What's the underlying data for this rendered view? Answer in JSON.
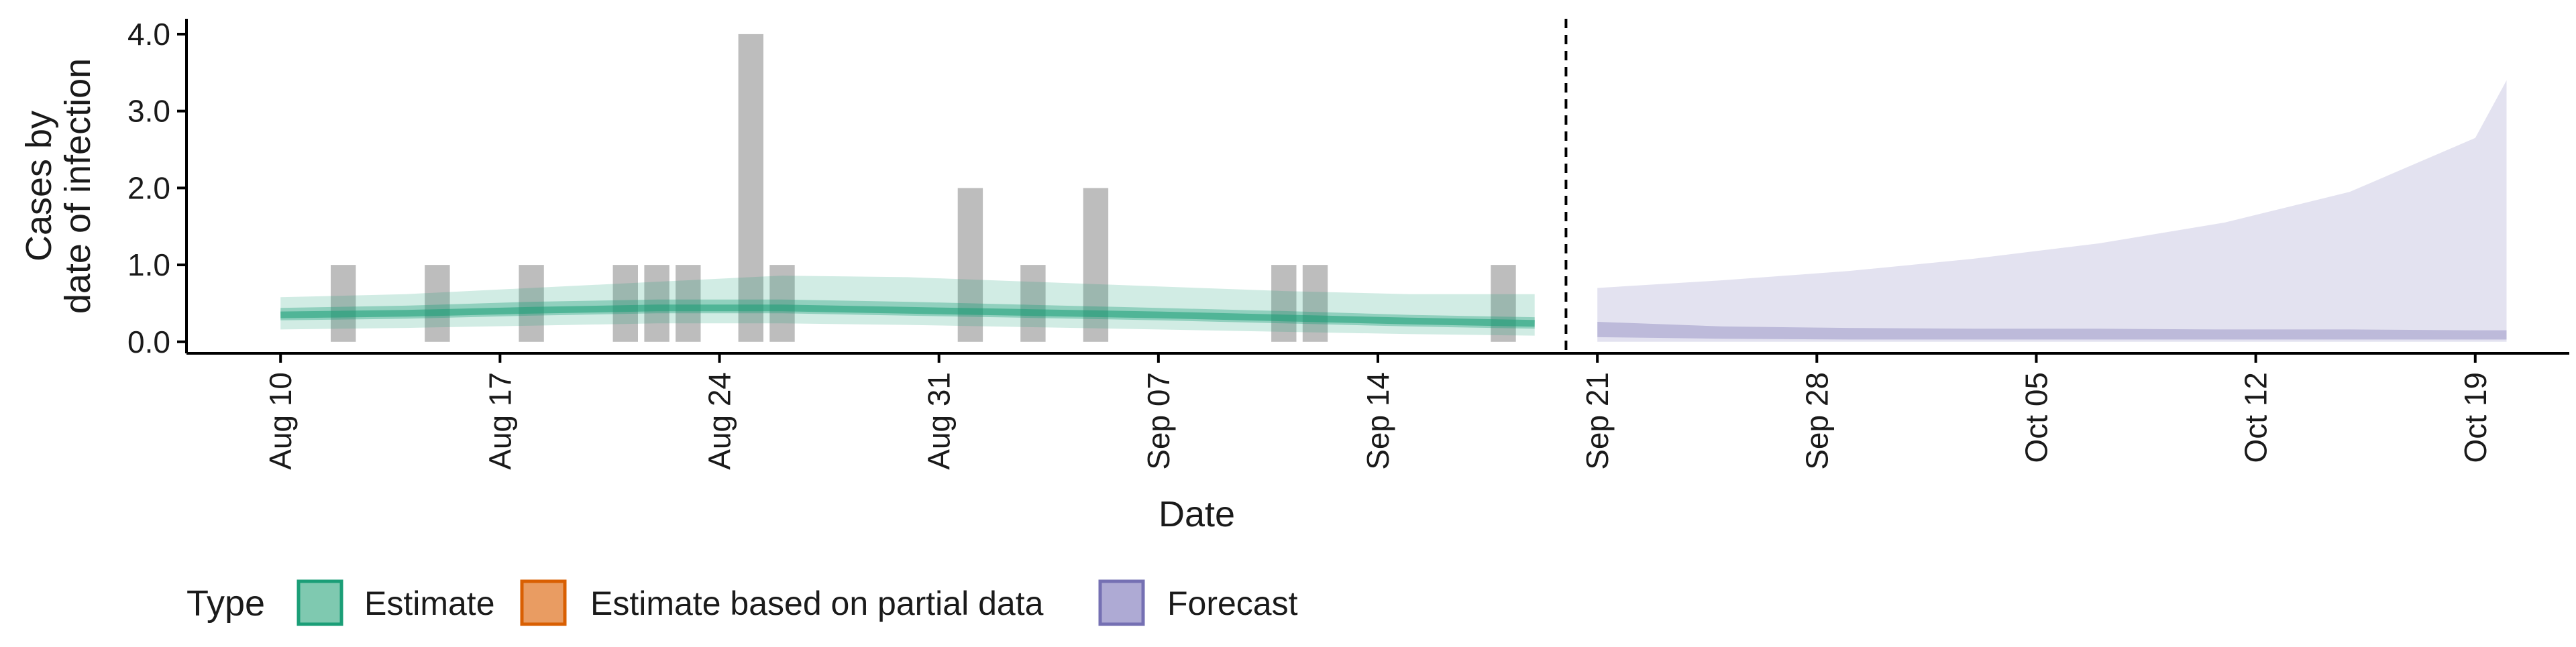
{
  "chart_data": {
    "type": "area",
    "title": "",
    "xlabel": "Date",
    "ylabel": [
      "Cases by",
      "date of infection"
    ],
    "ylim": [
      -0.15,
      4.2
    ],
    "x_range": [
      "2020-08-07",
      "2020-10-22"
    ],
    "y_ticks": [
      "0.0",
      "1.0",
      "2.0",
      "3.0",
      "4.0"
    ],
    "x_ticks": [
      {
        "date": "2020-08-10",
        "label": "Aug 10"
      },
      {
        "date": "2020-08-17",
        "label": "Aug 17"
      },
      {
        "date": "2020-08-24",
        "label": "Aug 24"
      },
      {
        "date": "2020-08-31",
        "label": "Aug 31"
      },
      {
        "date": "2020-09-07",
        "label": "Sep 07"
      },
      {
        "date": "2020-09-14",
        "label": "Sep 14"
      },
      {
        "date": "2020-09-21",
        "label": "Sep 21"
      },
      {
        "date": "2020-09-28",
        "label": "Sep 28"
      },
      {
        "date": "2020-10-05",
        "label": "Oct 05"
      },
      {
        "date": "2020-10-12",
        "label": "Oct 12"
      },
      {
        "date": "2020-10-19",
        "label": "Oct 19"
      }
    ],
    "forecast_start_line": "2020-09-20",
    "observed_cases": [
      {
        "date": "2020-08-12",
        "value": 1
      },
      {
        "date": "2020-08-15",
        "value": 1
      },
      {
        "date": "2020-08-18",
        "value": 1
      },
      {
        "date": "2020-08-21",
        "value": 1
      },
      {
        "date": "2020-08-22",
        "value": 1
      },
      {
        "date": "2020-08-23",
        "value": 1
      },
      {
        "date": "2020-08-25",
        "value": 4
      },
      {
        "date": "2020-08-26",
        "value": 1
      },
      {
        "date": "2020-09-01",
        "value": 2
      },
      {
        "date": "2020-09-03",
        "value": 1
      },
      {
        "date": "2020-09-05",
        "value": 2
      },
      {
        "date": "2020-09-11",
        "value": 1
      },
      {
        "date": "2020-09-12",
        "value": 1
      },
      {
        "date": "2020-09-18",
        "value": 1
      }
    ],
    "series": [
      {
        "type": "Estimate",
        "color": "#1b9e77",
        "dates": [
          "2020-08-10",
          "2020-08-14",
          "2020-08-18",
          "2020-08-22",
          "2020-08-26",
          "2020-08-30",
          "2020-09-03",
          "2020-09-07",
          "2020-09-11",
          "2020-09-15",
          "2020-09-19"
        ],
        "median": [
          0.35,
          0.37,
          0.41,
          0.44,
          0.44,
          0.41,
          0.38,
          0.35,
          0.31,
          0.27,
          0.24
        ],
        "inner_lower": [
          0.28,
          0.3,
          0.34,
          0.37,
          0.37,
          0.34,
          0.31,
          0.28,
          0.24,
          0.2,
          0.17
        ],
        "inner_upper": [
          0.44,
          0.47,
          0.52,
          0.55,
          0.55,
          0.52,
          0.48,
          0.44,
          0.4,
          0.35,
          0.32
        ],
        "outer_lower": [
          0.16,
          0.18,
          0.21,
          0.24,
          0.24,
          0.22,
          0.19,
          0.16,
          0.13,
          0.1,
          0.08
        ],
        "outer_upper": [
          0.58,
          0.62,
          0.7,
          0.78,
          0.86,
          0.84,
          0.78,
          0.72,
          0.66,
          0.62,
          0.62
        ]
      },
      {
        "type": "Forecast",
        "color": "#7570b3",
        "dates": [
          "2020-09-21",
          "2020-09-25",
          "2020-09-29",
          "2020-10-03",
          "2020-10-07",
          "2020-10-11",
          "2020-10-15",
          "2020-10-19",
          "2020-10-20"
        ],
        "inner_lower": [
          0.06,
          0.04,
          0.03,
          0.03,
          0.03,
          0.03,
          0.03,
          0.03,
          0.03
        ],
        "inner_upper": [
          0.26,
          0.2,
          0.18,
          0.17,
          0.17,
          0.16,
          0.16,
          0.15,
          0.15
        ],
        "outer_lower": [
          0.0,
          0.0,
          0.0,
          0.0,
          0.0,
          0.0,
          0.0,
          0.0,
          0.0
        ],
        "outer_upper": [
          0.7,
          0.8,
          0.92,
          1.08,
          1.28,
          1.55,
          1.95,
          2.65,
          3.4
        ]
      }
    ],
    "legend": {
      "title": "Type",
      "position": "bottom",
      "items": [
        {
          "label": "Estimate",
          "color": "#1b9e77",
          "fill": "#7fc9b0"
        },
        {
          "label": "Estimate based on partial data",
          "color": "#d95f02",
          "fill": "#e99c62"
        },
        {
          "label": "Forecast",
          "color": "#7570b3",
          "fill": "#aeaad4"
        }
      ]
    },
    "grid": false
  }
}
